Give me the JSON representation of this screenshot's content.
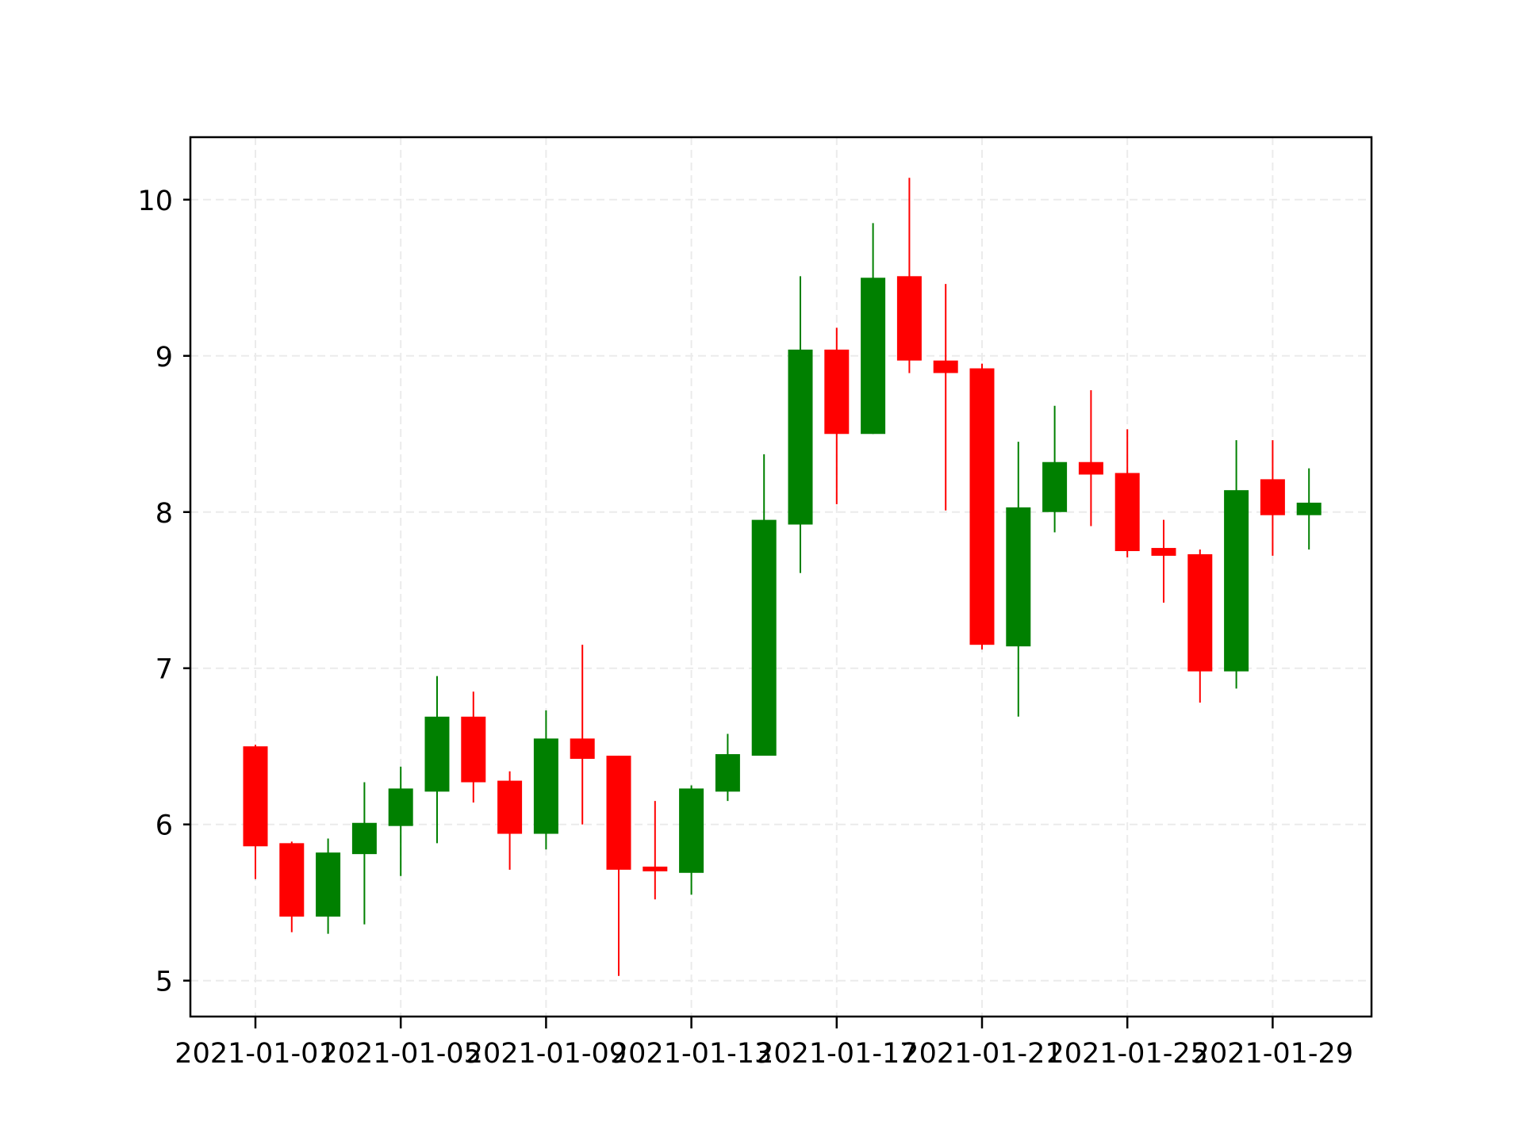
{
  "chart_data": {
    "type": "candlestick",
    "title": "",
    "xlabel": "",
    "ylabel": "",
    "ylim": [
      4.77,
      10.4
    ],
    "yticks": [
      5,
      6,
      7,
      8,
      9,
      10
    ],
    "ytick_labels": [
      "5",
      "6",
      "7",
      "8",
      "9",
      "10"
    ],
    "xticks": [
      "2021-01-01",
      "2021-01-05",
      "2021-01-09",
      "2021-01-13",
      "2021-01-17",
      "2021-01-21",
      "2021-01-25",
      "2021-01-29"
    ],
    "grid": true,
    "legend": null,
    "colors": {
      "up": "#008000",
      "down": "#ff0000",
      "grid": "#ebebeb",
      "axes": "#000000",
      "background": "#ffffff"
    },
    "categories": [
      "2021-01-01",
      "2021-01-02",
      "2021-01-03",
      "2021-01-04",
      "2021-01-05",
      "2021-01-06",
      "2021-01-07",
      "2021-01-08",
      "2021-01-09",
      "2021-01-10",
      "2021-01-11",
      "2021-01-12",
      "2021-01-13",
      "2021-01-14",
      "2021-01-15",
      "2021-01-16",
      "2021-01-17",
      "2021-01-18",
      "2021-01-19",
      "2021-01-20",
      "2021-01-21",
      "2021-01-22",
      "2021-01-23",
      "2021-01-24",
      "2021-01-25",
      "2021-01-26",
      "2021-01-27",
      "2021-01-28",
      "2021-01-29",
      "2021-01-30"
    ],
    "series": [
      {
        "name": "open",
        "values": [
          6.5,
          5.88,
          5.41,
          5.81,
          5.99,
          6.21,
          6.69,
          6.28,
          5.94,
          6.55,
          6.44,
          5.73,
          5.69,
          6.21,
          6.44,
          7.92,
          9.04,
          8.5,
          9.51,
          8.97,
          8.92,
          7.14,
          8.0,
          8.32,
          8.25,
          7.77,
          7.73,
          6.98,
          8.21,
          7.98
        ]
      },
      {
        "name": "high",
        "values": [
          6.51,
          5.89,
          5.91,
          6.27,
          6.37,
          6.95,
          6.85,
          6.34,
          6.73,
          7.15,
          6.44,
          6.15,
          6.25,
          6.58,
          8.37,
          9.51,
          9.18,
          9.85,
          10.14,
          9.46,
          8.95,
          8.45,
          8.68,
          8.78,
          8.53,
          7.95,
          7.76,
          8.46,
          8.46,
          8.28
        ]
      },
      {
        "name": "low",
        "values": [
          5.65,
          5.31,
          5.3,
          5.36,
          5.67,
          5.88,
          6.14,
          5.71,
          5.84,
          6.0,
          5.03,
          5.52,
          5.55,
          6.15,
          6.44,
          7.61,
          8.05,
          8.5,
          8.89,
          8.01,
          7.12,
          6.69,
          7.87,
          7.91,
          7.71,
          7.42,
          6.78,
          6.87,
          7.72,
          7.76
        ]
      },
      {
        "name": "close",
        "values": [
          5.86,
          5.41,
          5.82,
          6.01,
          6.23,
          6.69,
          6.27,
          5.94,
          6.55,
          6.42,
          5.71,
          5.7,
          6.23,
          6.45,
          7.95,
          9.04,
          8.5,
          9.5,
          8.97,
          8.89,
          7.15,
          8.03,
          8.32,
          8.24,
          7.75,
          7.72,
          6.98,
          8.14,
          7.98,
          8.06
        ]
      }
    ]
  }
}
